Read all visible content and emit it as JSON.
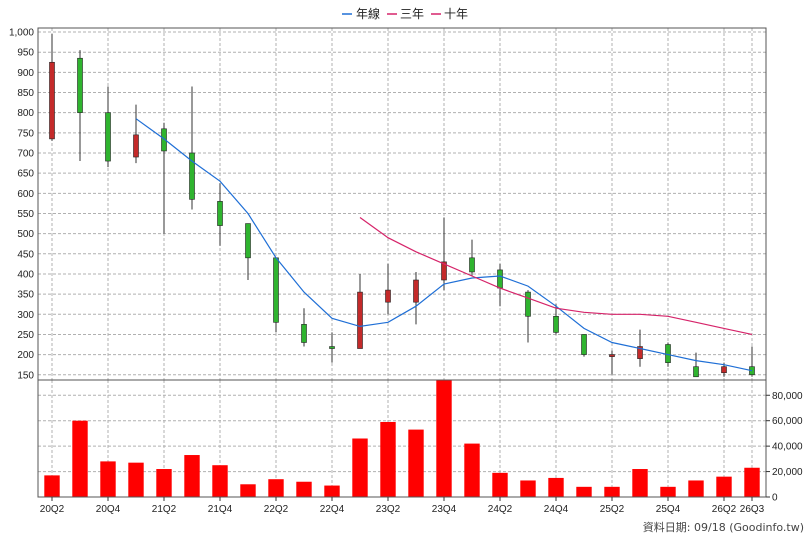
{
  "chart_data": {
    "type": "candlestick-with-volume",
    "legend": [
      {
        "label": "年線",
        "color": "#1f6fd6"
      },
      {
        "label": "三年",
        "color": "#d6246a"
      },
      {
        "label": "十年",
        "color": "#d6246a"
      }
    ],
    "categories": [
      "20Q2",
      "20Q3",
      "20Q4",
      "21Q1",
      "21Q2",
      "21Q3",
      "21Q4",
      "22Q1",
      "22Q2",
      "22Q3",
      "22Q4",
      "23Q1",
      "23Q2",
      "23Q3",
      "23Q4",
      "24Q1",
      "24Q2",
      "24Q3",
      "24Q4",
      "25Q1",
      "25Q2",
      "25Q3",
      "25Q4",
      "26Q1",
      "26Q2",
      "26Q3"
    ],
    "x_tick_labels": [
      "20Q2",
      "20Q4",
      "21Q2",
      "21Q4",
      "22Q2",
      "22Q4",
      "23Q2",
      "23Q4",
      "24Q2",
      "24Q4",
      "25Q2",
      "25Q4",
      "26Q2",
      "26Q3"
    ],
    "price_axis": {
      "min": 137,
      "max": 1010,
      "ticks": [
        150,
        200,
        250,
        300,
        350,
        400,
        450,
        500,
        550,
        600,
        650,
        700,
        750,
        800,
        850,
        900,
        950,
        1000
      ],
      "tick_labels": [
        "150",
        "200",
        "250",
        "300",
        "350",
        "400",
        "450",
        "500",
        "550",
        "600",
        "650",
        "700",
        "750",
        "800",
        "850",
        "900",
        "950",
        "1,000"
      ]
    },
    "volume_axis": {
      "min": 0,
      "max": 92000,
      "ticks": [
        0,
        20000,
        40000,
        60000,
        80000
      ],
      "tick_labels": [
        "0",
        "20,000",
        "40,000",
        "60,000",
        "80,000"
      ]
    },
    "candles": [
      {
        "o": 735,
        "h": 995,
        "l": 730,
        "c": 925
      },
      {
        "o": 935,
        "h": 955,
        "l": 680,
        "c": 800
      },
      {
        "o": 800,
        "h": 865,
        "l": 665,
        "c": 680
      },
      {
        "o": 690,
        "h": 820,
        "l": 675,
        "c": 745
      },
      {
        "o": 760,
        "h": 775,
        "l": 500,
        "c": 705
      },
      {
        "o": 700,
        "h": 865,
        "l": 560,
        "c": 585
      },
      {
        "o": 580,
        "h": 625,
        "l": 470,
        "c": 520
      },
      {
        "o": 525,
        "h": 525,
        "l": 385,
        "c": 440
      },
      {
        "o": 440,
        "h": 440,
        "l": 255,
        "c": 280
      },
      {
        "o": 275,
        "h": 315,
        "l": 220,
        "c": 230
      },
      {
        "o": 220,
        "h": 255,
        "l": 180,
        "c": 215
      },
      {
        "o": 215,
        "h": 400,
        "l": 215,
        "c": 355
      },
      {
        "o": 330,
        "h": 425,
        "l": 300,
        "c": 360
      },
      {
        "o": 330,
        "h": 405,
        "l": 275,
        "c": 385
      },
      {
        "o": 385,
        "h": 540,
        "l": 360,
        "c": 430
      },
      {
        "o": 440,
        "h": 485,
        "l": 395,
        "c": 405
      },
      {
        "o": 410,
        "h": 425,
        "l": 320,
        "c": 365
      },
      {
        "o": 355,
        "h": 360,
        "l": 230,
        "c": 295
      },
      {
        "o": 295,
        "h": 325,
        "l": 250,
        "c": 255
      },
      {
        "o": 250,
        "h": 250,
        "l": 195,
        "c": 200
      },
      {
        "o": 195,
        "h": 210,
        "l": 150,
        "c": 200
      },
      {
        "o": 190,
        "h": 262,
        "l": 170,
        "c": 220
      },
      {
        "o": 225,
        "h": 230,
        "l": 170,
        "c": 180
      },
      {
        "o": 170,
        "h": 205,
        "l": 145,
        "c": 145
      },
      {
        "o": 155,
        "h": 180,
        "l": 145,
        "c": 170
      },
      {
        "o": 170,
        "h": 220,
        "l": 145,
        "c": 150
      }
    ],
    "ma_year": {
      "name": "年線",
      "values": [
        null,
        null,
        null,
        785,
        735,
        680,
        630,
        550,
        440,
        355,
        290,
        270,
        280,
        320,
        375,
        390,
        395,
        370,
        320,
        265,
        230,
        215,
        200,
        185,
        175,
        160
      ]
    },
    "ma_3year": {
      "name": "三年",
      "values": [
        null,
        null,
        null,
        null,
        null,
        null,
        null,
        null,
        null,
        null,
        null,
        540,
        490,
        455,
        425,
        395,
        365,
        340,
        315,
        305,
        300,
        300,
        295,
        280,
        265,
        250
      ]
    },
    "volume": [
      17000,
      60000,
      28000,
      27000,
      22000,
      33000,
      25000,
      10000,
      14000,
      12000,
      9000,
      46000,
      59000,
      53000,
      92000,
      42000,
      19000,
      13000,
      15000,
      8000,
      8000,
      22000,
      8000,
      13000,
      16000,
      23000
    ],
    "up_color": "#dd2222",
    "down_color": "#33aa33",
    "volume_color": "#ff0000"
  },
  "source_note": "資料日期: 09/18  (Goodinfo.tw)"
}
